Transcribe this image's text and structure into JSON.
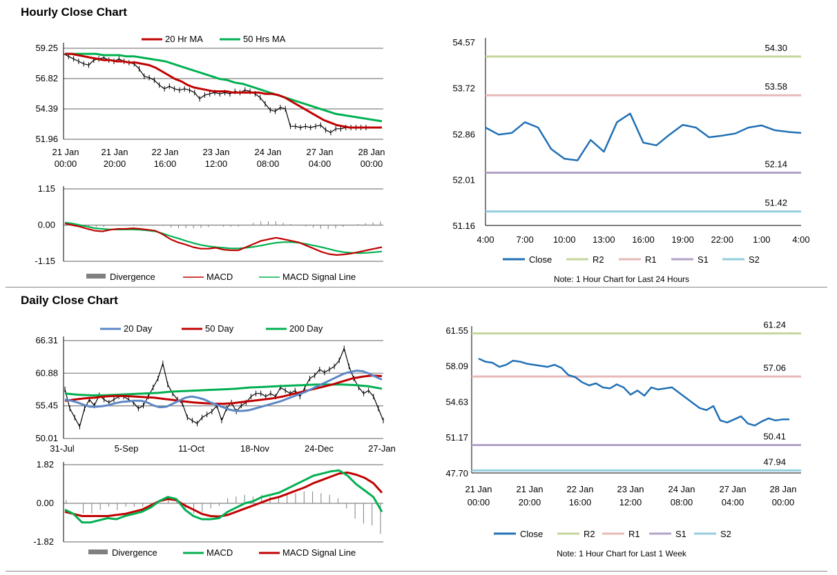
{
  "sections": {
    "hourly_title": "Hourly Close Chart",
    "daily_title": "Daily Close Chart"
  },
  "colors": {
    "ma_red": "#c00000",
    "ma_green": "#00b050",
    "close_blue": "#1f6fb5",
    "daily_blue": "#5b87c5",
    "r2": "#c3d69b",
    "r1": "#e6b9b8",
    "s1": "#b3a2c7",
    "s2": "#93cddd",
    "divergence": "#7f7f7f",
    "grid": "#808080"
  },
  "chart_data": [
    {
      "id": "hourly_price",
      "type": "line",
      "legend": [
        "20 Hr MA",
        "50 Hrs MA"
      ],
      "y_ticks": [
        "59.25",
        "56.82",
        "54.39",
        "51.96"
      ],
      "ylim": [
        51.96,
        59.25
      ],
      "x_tick_lines": [
        [
          "21 Jan",
          "00:00"
        ],
        [
          "21 Jan",
          "20:00"
        ],
        [
          "22 Jan",
          "16:00"
        ],
        [
          "23 Jan",
          "12:00"
        ],
        [
          "24 Jan",
          "08:00"
        ],
        [
          "27 Jan",
          "04:00"
        ],
        [
          "28 Jan",
          "00:00"
        ]
      ],
      "close": [
        58.8,
        58.6,
        58.4,
        58.2,
        58.0,
        57.9,
        58.3,
        58.4,
        58.5,
        58.3,
        58.2,
        58.4,
        58.2,
        58.1,
        58.0,
        57.6,
        57.0,
        56.9,
        56.7,
        56.3,
        56.0,
        56.2,
        56.0,
        55.9,
        56.0,
        55.9,
        55.7,
        55.2,
        55.5,
        55.6,
        55.7,
        55.6,
        55.7,
        55.6,
        55.8,
        55.7,
        55.9,
        55.8,
        55.6,
        55.3,
        54.8,
        54.3,
        54.2,
        54.5,
        54.4,
        53.0,
        53.0,
        52.9,
        53.0,
        52.9,
        53.0,
        53.1,
        52.7,
        52.5,
        52.8,
        52.8,
        52.9,
        52.9,
        52.9,
        52.9,
        52.9
      ],
      "ma20": [
        58.8,
        58.8,
        58.7,
        58.6,
        58.5,
        58.4,
        58.3,
        58.3,
        58.2,
        58.2,
        58.1,
        58.1,
        58.0,
        57.9,
        57.7,
        57.4,
        57.1,
        56.8,
        56.6,
        56.3,
        56.1,
        56.0,
        55.9,
        55.8,
        55.8,
        55.8,
        55.7,
        55.7,
        55.7,
        55.7,
        55.7,
        55.6,
        55.6,
        55.5,
        55.3,
        55.0,
        54.7,
        54.4,
        54.1,
        53.8,
        53.5,
        53.3,
        53.1,
        53.0,
        52.9,
        52.9,
        52.9,
        52.9,
        52.9,
        52.9
      ],
      "ma50": [
        58.8,
        58.8,
        58.8,
        58.8,
        58.8,
        58.7,
        58.7,
        58.7,
        58.6,
        58.6,
        58.5,
        58.4,
        58.3,
        58.2,
        58.0,
        57.8,
        57.6,
        57.4,
        57.2,
        57.0,
        56.8,
        56.7,
        56.5,
        56.4,
        56.2,
        56.0,
        55.8,
        55.6,
        55.4,
        55.2,
        55.0,
        54.8,
        54.6,
        54.4,
        54.2,
        54.0,
        53.9,
        53.8,
        53.7,
        53.6,
        53.5,
        53.4
      ]
    },
    {
      "id": "hourly_macd",
      "type": "line",
      "legend": [
        "Divergence",
        "MACD",
        "MACD Signal Line"
      ],
      "y_ticks": [
        "1.15",
        "0.00",
        "-1.15"
      ],
      "ylim": [
        -1.15,
        1.15
      ],
      "macd": [
        0.05,
        0.0,
        -0.05,
        -0.12,
        -0.18,
        -0.2,
        -0.15,
        -0.12,
        -0.12,
        -0.1,
        -0.12,
        -0.15,
        -0.18,
        -0.3,
        -0.45,
        -0.55,
        -0.62,
        -0.7,
        -0.75,
        -0.75,
        -0.72,
        -0.78,
        -0.8,
        -0.8,
        -0.7,
        -0.6,
        -0.5,
        -0.45,
        -0.4,
        -0.45,
        -0.5,
        -0.55,
        -0.65,
        -0.75,
        -0.85,
        -0.92,
        -0.95,
        -0.93,
        -0.9,
        -0.85,
        -0.8,
        -0.75,
        -0.7
      ],
      "signal": [
        0.08,
        0.05,
        0.0,
        -0.05,
        -0.1,
        -0.12,
        -0.14,
        -0.14,
        -0.14,
        -0.14,
        -0.15,
        -0.17,
        -0.2,
        -0.27,
        -0.35,
        -0.42,
        -0.5,
        -0.57,
        -0.63,
        -0.67,
        -0.7,
        -0.72,
        -0.74,
        -0.74,
        -0.72,
        -0.69,
        -0.65,
        -0.6,
        -0.56,
        -0.54,
        -0.54,
        -0.56,
        -0.6,
        -0.65,
        -0.7,
        -0.76,
        -0.82,
        -0.86,
        -0.88,
        -0.89,
        -0.88,
        -0.86,
        -0.84
      ]
    },
    {
      "id": "hourly_24h",
      "type": "line",
      "legend": [
        "Close",
        "R2",
        "R1",
        "S1",
        "S2"
      ],
      "note": "Note: 1 Hour Chart for Last 24 Hours",
      "y_ticks": [
        "54.57",
        "53.72",
        "52.86",
        "52.01",
        "51.16"
      ],
      "ylim": [
        51.16,
        54.57
      ],
      "x_ticks": [
        "4:00",
        "7:00",
        "10:00",
        "13:00",
        "16:00",
        "19:00",
        "22:00",
        "1:00",
        "4:00"
      ],
      "levels": {
        "R2": 54.3,
        "R1": 53.58,
        "S1": 52.14,
        "S2": 51.42
      },
      "level_labels": {
        "R2": "54.30",
        "R1": "53.58",
        "S1": "52.14",
        "S2": "51.42"
      },
      "close": [
        52.98,
        52.85,
        52.88,
        53.08,
        52.98,
        52.58,
        52.4,
        52.37,
        52.75,
        52.53,
        53.08,
        53.24,
        52.7,
        52.65,
        52.85,
        53.03,
        52.98,
        52.8,
        52.83,
        52.87,
        52.98,
        53.02,
        52.93,
        52.9,
        52.88
      ]
    },
    {
      "id": "daily_price",
      "type": "line",
      "legend": [
        "20 Day",
        "50 Day",
        "200 Day"
      ],
      "y_ticks": [
        "66.31",
        "60.88",
        "55.45",
        "50.01"
      ],
      "ylim": [
        50.01,
        66.31
      ],
      "x_ticks": [
        "31-Jul",
        "5-Sep",
        "11-Oct",
        "18-Nov",
        "24-Dec",
        "27-Jan"
      ],
      "close": [
        58.2,
        55.0,
        53.5,
        52.0,
        55.0,
        56.5,
        55.5,
        57.2,
        56.5,
        56.0,
        56.5,
        57.0,
        57.0,
        56.5,
        56.0,
        55.0,
        55.5,
        57.0,
        58.5,
        60.0,
        62.5,
        59.0,
        57.5,
        56.5,
        55.8,
        53.5,
        53.0,
        52.5,
        53.5,
        54.0,
        54.5,
        55.5,
        53.0,
        55.0,
        56.0,
        54.5,
        55.5,
        56.0,
        57.0,
        57.5,
        57.5,
        57.0,
        57.5,
        57.0,
        58.5,
        58.0,
        57.5,
        58.0,
        57.0,
        58.5,
        60.0,
        60.5,
        61.5,
        61.0,
        61.5,
        62.0,
        63.0,
        65.0,
        62.0,
        60.0,
        58.5,
        57.5,
        58.0,
        57.0,
        55.0,
        53.0
      ],
      "ma20": [
        56.5,
        56.3,
        56.0,
        55.6,
        55.3,
        55.3,
        55.4,
        55.6,
        55.9,
        56.1,
        56.2,
        56.3,
        56.3,
        56.0,
        55.5,
        55.2,
        55.3,
        55.8,
        56.3,
        56.8,
        57.0,
        56.8,
        56.5,
        56.0,
        55.6,
        55.2,
        54.8,
        54.6,
        54.6,
        54.7,
        55.0,
        55.3,
        55.6,
        55.9,
        56.2,
        56.6,
        57.0,
        57.4,
        57.8,
        58.3,
        58.8,
        59.3,
        59.8,
        60.3,
        60.8,
        61.1,
        61.3,
        61.2,
        60.8,
        60.3,
        59.8
      ],
      "ma50": [
        56.3,
        56.5,
        56.7,
        56.8,
        57.0,
        57.1,
        57.1,
        57.0,
        56.9,
        56.8,
        56.6,
        56.4,
        56.2,
        56.0,
        55.9,
        55.8,
        55.8,
        55.9,
        56.1,
        56.3,
        56.5,
        56.7,
        57.0,
        57.4,
        57.8,
        58.2,
        58.6,
        59.0,
        59.5,
        60.0,
        60.3,
        60.5,
        60.4
      ],
      "ma200": [
        57.5,
        57.3,
        57.2,
        57.2,
        57.3,
        57.4,
        57.5,
        57.6,
        57.8,
        57.9,
        58.0,
        58.1,
        58.2,
        58.3,
        58.5,
        58.6,
        58.7,
        58.8,
        58.9,
        59.0,
        59.0,
        59.0,
        58.9,
        58.7,
        58.3
      ]
    },
    {
      "id": "daily_macd",
      "type": "line",
      "legend": [
        "Divergence",
        "MACD",
        "MACD Signal Line"
      ],
      "y_ticks": [
        "1.82",
        "0.00",
        "-1.82"
      ],
      "ylim": [
        -1.82,
        1.82
      ],
      "macd": [
        -0.3,
        -0.5,
        -0.9,
        -0.9,
        -0.8,
        -0.7,
        -0.75,
        -0.6,
        -0.5,
        -0.4,
        -0.2,
        0.1,
        0.3,
        0.2,
        -0.3,
        -0.6,
        -0.75,
        -0.75,
        -0.7,
        -0.4,
        -0.2,
        0.0,
        0.1,
        0.3,
        0.4,
        0.5,
        0.7,
        0.9,
        1.1,
        1.3,
        1.4,
        1.5,
        1.55,
        1.3,
        0.9,
        0.6,
        0.3,
        -0.4
      ],
      "signal": [
        -0.4,
        -0.5,
        -0.6,
        -0.6,
        -0.6,
        -0.6,
        -0.55,
        -0.5,
        -0.4,
        -0.3,
        -0.1,
        0.1,
        0.2,
        0.15,
        -0.1,
        -0.3,
        -0.5,
        -0.6,
        -0.62,
        -0.55,
        -0.4,
        -0.25,
        -0.1,
        0.05,
        0.2,
        0.3,
        0.45,
        0.6,
        0.75,
        0.95,
        1.1,
        1.25,
        1.4,
        1.45,
        1.35,
        1.2,
        0.95,
        0.5
      ]
    },
    {
      "id": "weekly_hourly",
      "type": "line",
      "legend": [
        "Close",
        "R2",
        "R1",
        "S1",
        "S2"
      ],
      "note": "Note: 1 Hour Chart for Last 1 Week",
      "y_ticks": [
        "61.55",
        "58.09",
        "54.63",
        "51.17",
        "47.70"
      ],
      "ylim": [
        47.7,
        61.55
      ],
      "x_tick_lines": [
        [
          "21 Jan",
          "00:00"
        ],
        [
          "21 Jan",
          "20:00"
        ],
        [
          "22 Jan",
          "16:00"
        ],
        [
          "23 Jan",
          "12:00"
        ],
        [
          "24 Jan",
          "08:00"
        ],
        [
          "27 Jan",
          "04:00"
        ],
        [
          "28 Jan",
          "00:00"
        ]
      ],
      "levels": {
        "R2": 61.24,
        "R1": 57.06,
        "S1": 50.41,
        "S2": 47.94
      },
      "level_labels": {
        "R2": "61.24",
        "R1": "57.06",
        "S1": "50.41",
        "S2": "47.94"
      },
      "close": [
        58.8,
        58.5,
        58.4,
        58.0,
        58.2,
        58.6,
        58.5,
        58.3,
        58.2,
        58.1,
        58.0,
        58.2,
        57.9,
        57.2,
        57.0,
        56.5,
        56.2,
        56.4,
        56.0,
        55.9,
        56.3,
        56.0,
        55.3,
        55.7,
        55.2,
        56.0,
        55.8,
        55.9,
        56.0,
        55.5,
        55.0,
        54.5,
        54.0,
        53.8,
        54.2,
        52.8,
        52.6,
        52.9,
        53.2,
        52.5,
        52.3,
        52.7,
        53.0,
        52.8,
        52.9,
        52.9
      ]
    }
  ]
}
